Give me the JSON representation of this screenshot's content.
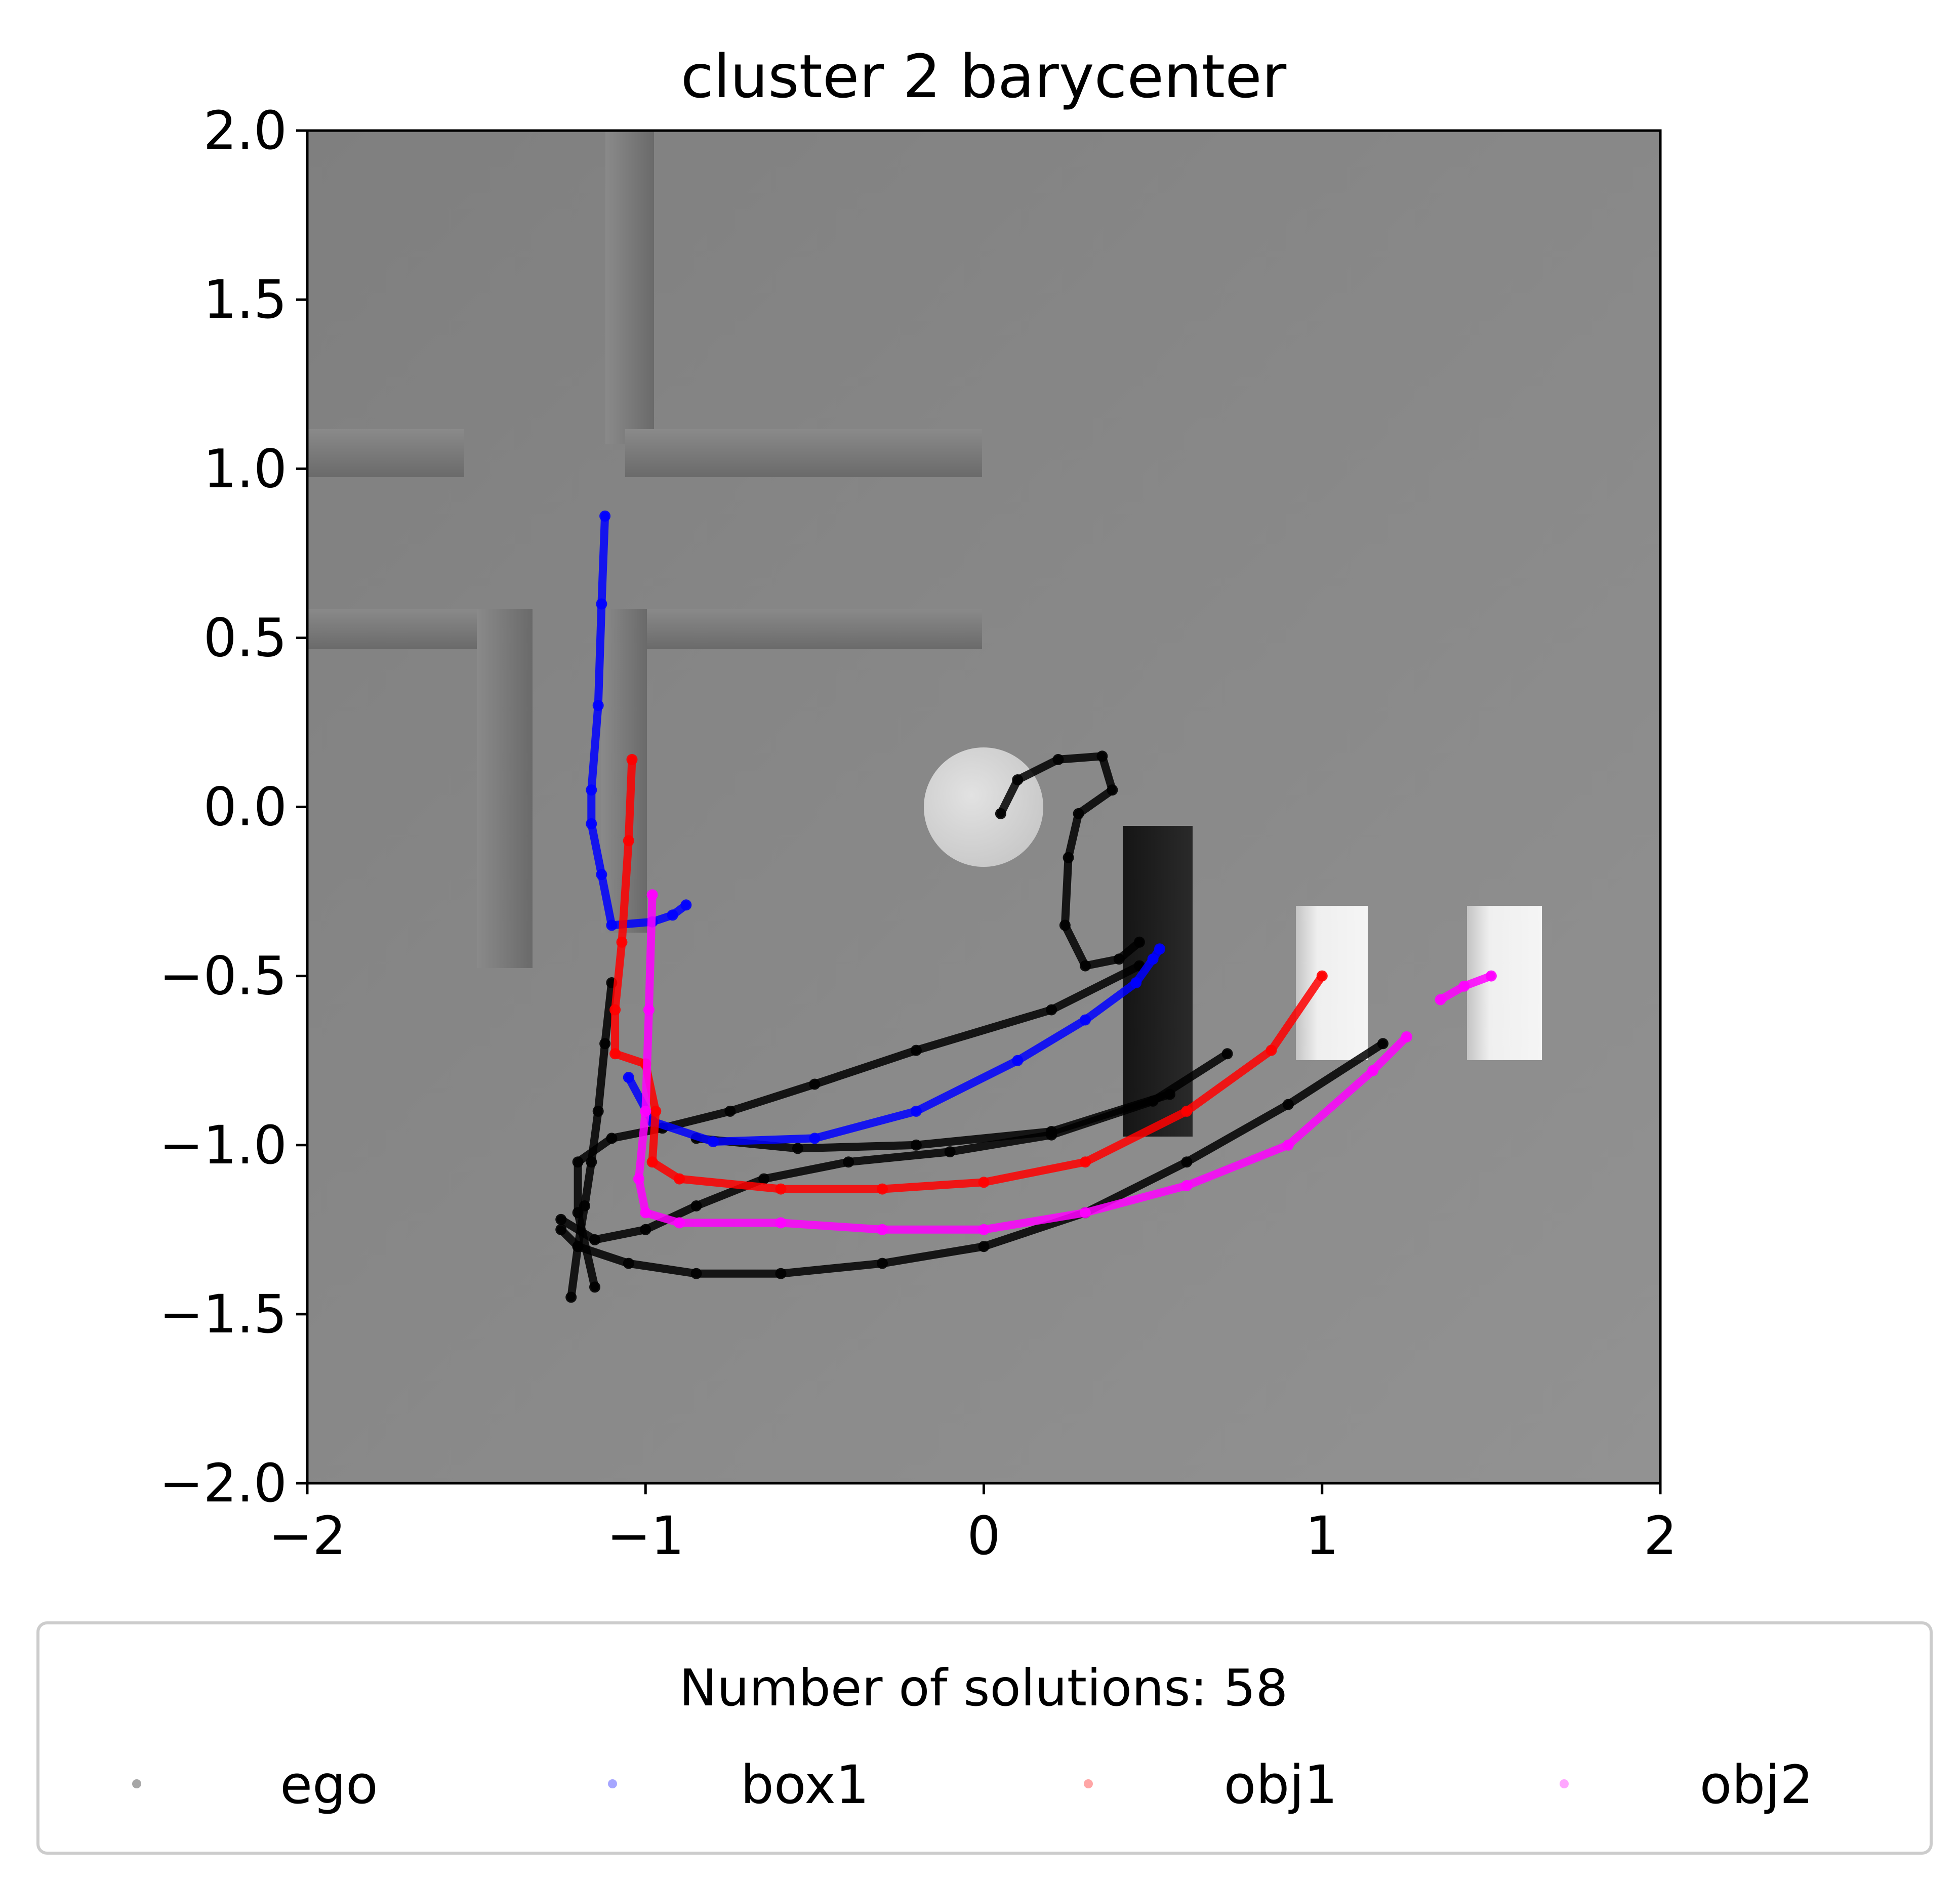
{
  "chart_data": {
    "type": "scatter",
    "title": "cluster 2 barycenter",
    "xlabel": "",
    "ylabel": "",
    "xlim": [
      -2,
      2
    ],
    "ylim": [
      -2,
      2
    ],
    "xticks": [
      -2,
      -1,
      0,
      1,
      2
    ],
    "xtick_labels": [
      "−2",
      "−1",
      "0",
      "1",
      "2"
    ],
    "yticks": [
      2.0,
      1.5,
      1.0,
      0.5,
      0.0,
      -0.5,
      -1.0,
      -1.5,
      -2.0
    ],
    "ytick_labels": [
      "2.0",
      "1.5",
      "1.0",
      "0.5",
      "0.0",
      "−0.5",
      "−1.0",
      "−1.5",
      "−2.0"
    ],
    "grid": false,
    "background": "rendered top-down scene (grey floor, walls, obstacles)",
    "legend": {
      "title": "Number of solutions: 58",
      "placement": "bottom",
      "entries": [
        {
          "label": "ego",
          "color": "#000000"
        },
        {
          "label": "box1",
          "color": "#0000ff"
        },
        {
          "label": "obj1",
          "color": "#ff0000"
        },
        {
          "label": "obj2",
          "color": "#ff00ff"
        }
      ]
    },
    "series": [
      {
        "name": "ego",
        "color": "#000000",
        "trajectories": [
          [
            [
              0.05,
              -0.02
            ],
            [
              0.1,
              0.08
            ],
            [
              0.22,
              0.14
            ],
            [
              0.35,
              0.15
            ],
            [
              0.38,
              0.05
            ],
            [
              0.28,
              -0.02
            ],
            [
              0.25,
              -0.15
            ],
            [
              0.24,
              -0.35
            ],
            [
              0.3,
              -0.47
            ],
            [
              0.4,
              -0.45
            ],
            [
              0.46,
              -0.4
            ]
          ],
          [
            [
              0.72,
              -0.73
            ],
            [
              0.5,
              -0.87
            ],
            [
              0.2,
              -0.97
            ],
            [
              -0.1,
              -1.02
            ],
            [
              -0.4,
              -1.05
            ],
            [
              -0.65,
              -1.1
            ],
            [
              -0.85,
              -1.18
            ],
            [
              -1.0,
              -1.25
            ],
            [
              -1.15,
              -1.28
            ],
            [
              -1.25,
              -1.22
            ]
          ],
          [
            [
              1.18,
              -0.7
            ],
            [
              0.9,
              -0.88
            ],
            [
              0.6,
              -1.05
            ],
            [
              0.3,
              -1.2
            ],
            [
              0.0,
              -1.3
            ],
            [
              -0.3,
              -1.35
            ],
            [
              -0.6,
              -1.38
            ],
            [
              -0.85,
              -1.38
            ],
            [
              -1.05,
              -1.35
            ],
            [
              -1.2,
              -1.3
            ],
            [
              -1.25,
              -1.25
            ]
          ],
          [
            [
              0.46,
              -0.47
            ],
            [
              0.2,
              -0.6
            ],
            [
              -0.2,
              -0.72
            ],
            [
              -0.5,
              -0.82
            ],
            [
              -0.75,
              -0.9
            ],
            [
              -0.95,
              -0.95
            ],
            [
              -1.1,
              -0.98
            ],
            [
              -1.2,
              -1.05
            ],
            [
              -1.2,
              -1.2
            ],
            [
              -1.15,
              -1.42
            ]
          ],
          [
            [
              -1.1,
              -0.52
            ],
            [
              -1.12,
              -0.7
            ],
            [
              -1.14,
              -0.9
            ],
            [
              -1.16,
              -1.05
            ],
            [
              -1.18,
              -1.18
            ],
            [
              -1.2,
              -1.3
            ],
            [
              -1.22,
              -1.45
            ]
          ],
          [
            [
              0.55,
              -0.85
            ],
            [
              0.2,
              -0.96
            ],
            [
              -0.2,
              -1.0
            ],
            [
              -0.55,
              -1.01
            ],
            [
              -0.85,
              -0.98
            ]
          ]
        ]
      },
      {
        "name": "box1",
        "color": "#0000ff",
        "trajectories": [
          [
            [
              -1.12,
              0.86
            ],
            [
              -1.13,
              0.6
            ],
            [
              -1.14,
              0.3
            ],
            [
              -1.16,
              0.05
            ],
            [
              -1.16,
              -0.05
            ],
            [
              -1.13,
              -0.2
            ],
            [
              -1.1,
              -0.35
            ],
            [
              -0.98,
              -0.34
            ],
            [
              -0.92,
              -0.32
            ],
            [
              -0.88,
              -0.29
            ]
          ],
          [
            [
              -1.05,
              -0.8
            ],
            [
              -0.98,
              -0.93
            ],
            [
              -0.8,
              -0.99
            ],
            [
              -0.5,
              -0.98
            ],
            [
              -0.2,
              -0.9
            ],
            [
              0.1,
              -0.75
            ],
            [
              0.3,
              -0.63
            ],
            [
              0.45,
              -0.52
            ],
            [
              0.5,
              -0.45
            ],
            [
              0.52,
              -0.42
            ]
          ]
        ]
      },
      {
        "name": "obj1",
        "color": "#ff0000",
        "trajectories": [
          [
            [
              -1.04,
              0.14
            ],
            [
              -1.05,
              -0.1
            ],
            [
              -1.07,
              -0.4
            ],
            [
              -1.09,
              -0.6
            ],
            [
              -1.09,
              -0.73
            ],
            [
              -1.0,
              -0.76
            ],
            [
              -0.97,
              -0.9
            ],
            [
              -0.98,
              -1.05
            ],
            [
              -0.9,
              -1.1
            ],
            [
              -0.6,
              -1.13
            ],
            [
              -0.3,
              -1.13
            ],
            [
              0.0,
              -1.11
            ],
            [
              0.3,
              -1.05
            ],
            [
              0.6,
              -0.9
            ],
            [
              0.85,
              -0.72
            ],
            [
              1.0,
              -0.5
            ]
          ]
        ]
      },
      {
        "name": "obj2",
        "color": "#ff00ff",
        "trajectories": [
          [
            [
              -0.98,
              -0.26
            ],
            [
              -0.99,
              -0.6
            ],
            [
              -1.0,
              -0.9
            ],
            [
              -1.02,
              -1.1
            ],
            [
              -1.0,
              -1.2
            ],
            [
              -0.9,
              -1.23
            ],
            [
              -0.6,
              -1.23
            ],
            [
              -0.3,
              -1.25
            ],
            [
              0.0,
              -1.25
            ],
            [
              0.3,
              -1.2
            ],
            [
              0.6,
              -1.12
            ],
            [
              0.9,
              -1.0
            ],
            [
              1.15,
              -0.78
            ],
            [
              1.25,
              -0.68
            ]
          ],
          [
            [
              1.35,
              -0.57
            ],
            [
              1.42,
              -0.53
            ],
            [
              1.5,
              -0.5
            ]
          ]
        ]
      }
    ]
  }
}
